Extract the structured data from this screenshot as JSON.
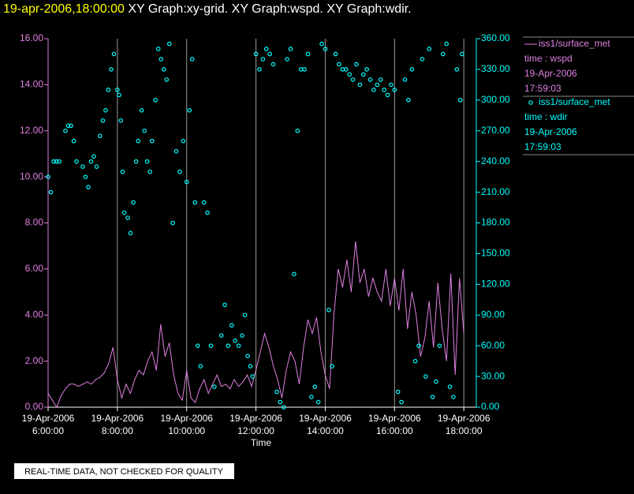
{
  "chart_data": {
    "type": "line-scatter",
    "title": "19-apr-2006,18:00:00",
    "subtitle": " XY Graph:xy-grid.  XY Graph:wspd.  XY Graph:wdir.",
    "x_label": "Time",
    "footer": "REAL-TIME DATA, NOT CHECKED FOR QUALITY",
    "grid": true,
    "xlim": [
      6,
      18.36
    ],
    "xticks": [
      {
        "value": 6,
        "date": "19-Apr-2006",
        "label": "6:00:00"
      },
      {
        "value": 8,
        "date": "19-Apr-2006",
        "label": "8:00:00"
      },
      {
        "value": 10,
        "date": "19-Apr-2006",
        "label": "10:00:00"
      },
      {
        "value": 12,
        "date": "19-Apr-2006",
        "label": "12:00:00"
      },
      {
        "value": 14,
        "date": "19-Apr-2006",
        "label": "14:00:00"
      },
      {
        "value": 16,
        "date": "19-Apr-2006",
        "label": "16:00:00"
      },
      {
        "value": 18,
        "date": "19-Apr-2006",
        "label": "18:00:00"
      }
    ],
    "ylim": [
      0,
      16
    ],
    "yticks": [
      {
        "value": 0,
        "label": "0.00"
      },
      {
        "value": 2,
        "label": "2.00"
      },
      {
        "value": 4,
        "label": "4.00"
      },
      {
        "value": 6,
        "label": "6.00"
      },
      {
        "value": 8,
        "label": "8.00"
      },
      {
        "value": 10,
        "label": "10.00"
      },
      {
        "value": 12,
        "label": "12.00"
      },
      {
        "value": 14,
        "label": "14.00"
      },
      {
        "value": 16,
        "label": "16.00"
      }
    ],
    "y2lim": [
      0,
      360
    ],
    "y2ticks": [
      {
        "value": 0,
        "label": "0.00"
      },
      {
        "value": 30,
        "label": "30.00"
      },
      {
        "value": 60,
        "label": "60.00"
      },
      {
        "value": 90,
        "label": "90.00"
      },
      {
        "value": 120,
        "label": "120.00"
      },
      {
        "value": 150,
        "label": "150.00"
      },
      {
        "value": 180,
        "label": "180.00"
      },
      {
        "value": 210,
        "label": "210.00"
      },
      {
        "value": 240,
        "label": "240.00"
      },
      {
        "value": 270,
        "label": "270.00"
      },
      {
        "value": 300,
        "label": "300.00"
      },
      {
        "value": 330,
        "label": "330.00"
      },
      {
        "value": 360,
        "label": "360.00"
      }
    ],
    "series": [
      {
        "name": "iss1/surface_met",
        "kind": "line",
        "color": "#e080e0",
        "axis": "y",
        "legend": [
          "time : wspd",
          "19-Apr-2006",
          "17:59:03"
        ],
        "x": [
          6.0,
          6.125,
          6.25,
          6.375,
          6.5,
          6.625,
          6.75,
          6.875,
          7.0,
          7.125,
          7.25,
          7.375,
          7.5,
          7.625,
          7.75,
          7.875,
          8.0,
          8.125,
          8.25,
          8.375,
          8.5,
          8.625,
          8.75,
          8.875,
          9.0,
          9.125,
          9.25,
          9.375,
          9.5,
          9.625,
          9.75,
          9.875,
          10.0,
          10.125,
          10.25,
          10.375,
          10.5,
          10.625,
          10.75,
          10.875,
          11.0,
          11.125,
          11.25,
          11.375,
          11.5,
          11.625,
          11.75,
          11.875,
          12.0,
          12.125,
          12.25,
          12.375,
          12.5,
          12.625,
          12.75,
          12.875,
          13.0,
          13.125,
          13.25,
          13.375,
          13.5,
          13.625,
          13.75,
          13.875,
          14.0,
          14.125,
          14.25,
          14.375,
          14.5,
          14.625,
          14.75,
          14.875,
          15.0,
          15.125,
          15.25,
          15.375,
          15.5,
          15.625,
          15.75,
          15.875,
          16.0,
          16.125,
          16.25,
          16.375,
          16.5,
          16.625,
          16.75,
          16.875,
          17.0,
          17.125,
          17.25,
          17.375,
          17.5,
          17.625,
          17.75,
          17.875,
          18.0
        ],
        "values": [
          0.6,
          0.3,
          0.0,
          0.5,
          0.8,
          1.0,
          1.0,
          0.9,
          1.0,
          1.1,
          1.0,
          1.2,
          1.3,
          1.5,
          1.9,
          2.6,
          1.2,
          0.4,
          1.0,
          0.6,
          1.2,
          1.6,
          1.4,
          2.0,
          2.4,
          1.6,
          3.6,
          2.2,
          2.8,
          1.4,
          0.6,
          0.3,
          1.6,
          0.4,
          0.2,
          0.8,
          1.2,
          0.6,
          1.0,
          1.4,
          0.9,
          1.0,
          0.8,
          1.2,
          0.9,
          1.1,
          1.4,
          0.9,
          1.6,
          2.4,
          3.2,
          2.6,
          1.8,
          1.2,
          0.4,
          1.6,
          2.4,
          2.0,
          1.0,
          2.6,
          3.8,
          3.2,
          3.9,
          2.4,
          1.4,
          0.8,
          4.0,
          6.0,
          5.2,
          6.4,
          5.0,
          7.2,
          5.4,
          6.0,
          4.8,
          5.6,
          5.0,
          4.6,
          6.0,
          4.4,
          5.6,
          4.2,
          6.0,
          3.4,
          5.0,
          4.0,
          2.2,
          3.0,
          4.6,
          2.6,
          5.4,
          3.4,
          2.0,
          5.8,
          1.4,
          5.6,
          3.2
        ]
      },
      {
        "name": "iss1/surface_met",
        "kind": "scatter",
        "color": "#00ffff",
        "axis": "y2",
        "legend": [
          "time : wdir",
          "19-Apr-2006",
          "17:59:03"
        ],
        "x": [
          6.0,
          6.08,
          6.16,
          6.24,
          6.32,
          6.5,
          6.58,
          6.66,
          6.74,
          6.82,
          7.0,
          7.08,
          7.16,
          7.24,
          7.32,
          7.4,
          7.5,
          7.58,
          7.66,
          7.74,
          7.82,
          7.9,
          8.0,
          8.05,
          8.1,
          8.15,
          8.2,
          8.3,
          8.38,
          8.46,
          8.54,
          8.6,
          8.7,
          8.78,
          8.86,
          8.94,
          9.0,
          9.1,
          9.18,
          9.26,
          9.34,
          9.42,
          9.5,
          9.6,
          9.7,
          9.8,
          9.9,
          10.0,
          10.08,
          10.16,
          10.24,
          10.32,
          10.4,
          10.5,
          10.6,
          10.7,
          10.8,
          11.0,
          11.1,
          11.2,
          11.3,
          11.4,
          11.5,
          11.6,
          11.68,
          11.76,
          11.84,
          11.9,
          12.0,
          12.1,
          12.2,
          12.3,
          12.4,
          12.5,
          12.6,
          12.7,
          12.8,
          12.9,
          13.0,
          13.1,
          13.2,
          13.3,
          13.4,
          13.5,
          13.6,
          13.7,
          13.8,
          13.9,
          14.0,
          14.1,
          14.2,
          14.3,
          14.4,
          14.5,
          14.6,
          14.7,
          14.8,
          14.9,
          15.0,
          15.1,
          15.2,
          15.3,
          15.4,
          15.5,
          15.6,
          15.7,
          15.8,
          15.9,
          16.0,
          16.1,
          16.2,
          16.3,
          16.4,
          16.5,
          16.6,
          16.7,
          16.8,
          16.9,
          17.0,
          17.1,
          17.2,
          17.3,
          17.4,
          17.5,
          17.6,
          17.7,
          17.8,
          17.9,
          17.95
        ],
        "values": [
          225,
          210,
          240,
          240,
          240,
          270,
          275,
          275,
          260,
          240,
          235,
          225,
          215,
          240,
          245,
          235,
          265,
          280,
          290,
          310,
          330,
          345,
          310,
          305,
          280,
          230,
          190,
          185,
          170,
          200,
          240,
          260,
          290,
          270,
          240,
          230,
          260,
          300,
          350,
          340,
          330,
          320,
          355,
          180,
          250,
          230,
          260,
          220,
          290,
          340,
          200,
          60,
          40,
          200,
          190,
          60,
          20,
          70,
          100,
          60,
          80,
          65,
          60,
          70,
          90,
          50,
          40,
          30,
          345,
          330,
          340,
          350,
          345,
          335,
          15,
          5,
          0,
          340,
          350,
          130,
          270,
          330,
          330,
          345,
          10,
          20,
          5,
          355,
          350,
          95,
          40,
          345,
          335,
          330,
          330,
          325,
          320,
          335,
          315,
          325,
          330,
          320,
          310,
          315,
          320,
          310,
          305,
          315,
          310,
          15,
          5,
          320,
          300,
          330,
          45,
          60,
          340,
          30,
          350,
          10,
          25,
          60,
          345,
          355,
          20,
          10,
          330,
          300,
          345
        ]
      }
    ]
  }
}
